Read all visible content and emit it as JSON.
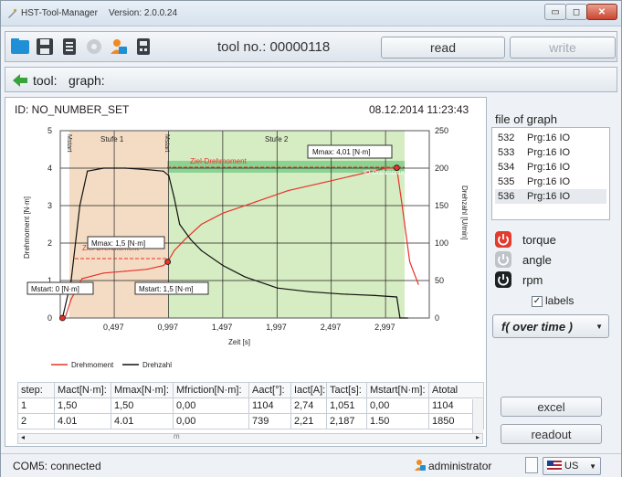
{
  "window": {
    "title": "HST-Tool-Manager",
    "version": "Version: 2.0.0.24",
    "minimize_glyph": "▭",
    "maximize_glyph": "◻",
    "close_glyph": "✕"
  },
  "toolbar": {
    "icons": [
      "folder-open-icon",
      "save-icon",
      "list-icon",
      "gear-icon",
      "user-icon",
      "device-icon"
    ],
    "tool_no_label": "tool no.: 00000118",
    "read_label": "read",
    "write_label": "write"
  },
  "nav": {
    "tool_label": "tool:",
    "graph_label": "graph:"
  },
  "header": {
    "id_label": "ID: NO_NUMBER_SET",
    "datetime": "08.12.2014  11:23:43"
  },
  "chart_data": {
    "type": "line",
    "x_ticks": [
      "0,497",
      "0,997",
      "1,497",
      "1,997",
      "2,497",
      "2,997"
    ],
    "xlabel": "Zeit [s]",
    "ylabel_left": "Drehmoment [N·m]",
    "ylabel_right": "Drehzahl [U/min]",
    "y_left_ticks": [
      "0",
      "1",
      "2",
      "3",
      "4",
      "5"
    ],
    "y_right_ticks": [
      "0",
      "50",
      "100",
      "150",
      "200",
      "250"
    ],
    "ylim_left": [
      0,
      5
    ],
    "ylim_right": [
      0,
      250
    ],
    "xlim": [
      0,
      3.4
    ],
    "grid": true,
    "legend_position": "bottom-left",
    "stage_labels": [
      "Stufe 1",
      "Stufe 2"
    ],
    "vertical_marker_labels": [
      "Mstart",
      "Mstart"
    ],
    "annotations": [
      "Ziel-Drehmoment",
      "IO-Drehmoment",
      "Ziel-Drehmoment"
    ],
    "markers": [
      {
        "label": "Mmax: 4,01 [N·m]"
      },
      {
        "label": "Mmax: 1,5 [N·m]"
      },
      {
        "label": "Mstart: 0 [N·m]"
      },
      {
        "label": "Mstart: 1,5 [N·m]"
      }
    ],
    "series": [
      {
        "name": "Drehmoment",
        "color": "#e8322a",
        "x": [
          0.02,
          0.05,
          0.1,
          0.2,
          0.4,
          0.6,
          0.8,
          0.95,
          0.99,
          1.05,
          1.15,
          1.3,
          1.5,
          1.8,
          2.1,
          2.4,
          2.7,
          3.0,
          3.1,
          3.15,
          3.22,
          3.3
        ],
        "values": [
          0.0,
          0.05,
          0.5,
          1.05,
          1.2,
          1.25,
          1.3,
          1.4,
          1.5,
          1.8,
          2.1,
          2.5,
          2.8,
          3.1,
          3.4,
          3.6,
          3.8,
          4.0,
          4.01,
          3.0,
          1.5,
          0.9
        ]
      },
      {
        "name": "Drehzahl",
        "color": "#111111",
        "x": [
          0.02,
          0.1,
          0.18,
          0.25,
          0.4,
          0.6,
          0.8,
          0.95,
          1.0,
          1.05,
          1.1,
          1.2,
          1.3,
          1.5,
          1.7,
          2.0,
          2.3,
          2.6,
          2.9,
          3.1,
          3.13,
          3.2
        ],
        "values": [
          0,
          50,
          150,
          196,
          200,
          200,
          198,
          196,
          190,
          160,
          125,
          105,
          90,
          70,
          55,
          40,
          35,
          32,
          30,
          28,
          0,
          0
        ]
      }
    ]
  },
  "table": {
    "columns": [
      "step:",
      "Mact[N·m]:",
      "Mmax[N·m]:",
      "Mfriction[N·m]:",
      "Aact[°]:",
      "Iact[A]:",
      "Tact[s]:",
      "Mstart[N·m]:",
      "Atotal"
    ],
    "rows": [
      [
        "1",
        "1,50",
        "1,50",
        "0,00",
        "1104",
        "2,74",
        "1,051",
        "0,00",
        "1104"
      ],
      [
        "2",
        "4.01",
        "4.01",
        "0,00",
        "739",
        "2,21",
        "2,187",
        "1.50",
        "1850"
      ]
    ],
    "scroll_glyph": "m"
  },
  "side": {
    "file_graph_label": "file of graph",
    "files": [
      {
        "num": "532",
        "name": "Prg:16 IO"
      },
      {
        "num": "533",
        "name": "Prg:16 IO"
      },
      {
        "num": "534",
        "name": "Prg:16 IO"
      },
      {
        "num": "535",
        "name": "Prg:16 IO"
      },
      {
        "num": "536",
        "name": "Prg:16 IO"
      }
    ],
    "selected_index": 4,
    "toggles": [
      {
        "label": "torque",
        "state": "red"
      },
      {
        "label": "angle",
        "state": "gray"
      },
      {
        "label": "rpm",
        "state": "dark"
      }
    ],
    "labels_checkbox": "labels",
    "labels_checked": true,
    "function_select": "f( over time )",
    "excel_label": "excel",
    "readout_label": "readout"
  },
  "status": {
    "connection": "COM5: connected",
    "user": "administrator",
    "language": "US"
  },
  "colors": {
    "accent_red": "#e8322a",
    "stage1_fill": "#f3dcc3",
    "stage2_fill": "#d6ecc2",
    "target_band": "#4fbf6a"
  }
}
